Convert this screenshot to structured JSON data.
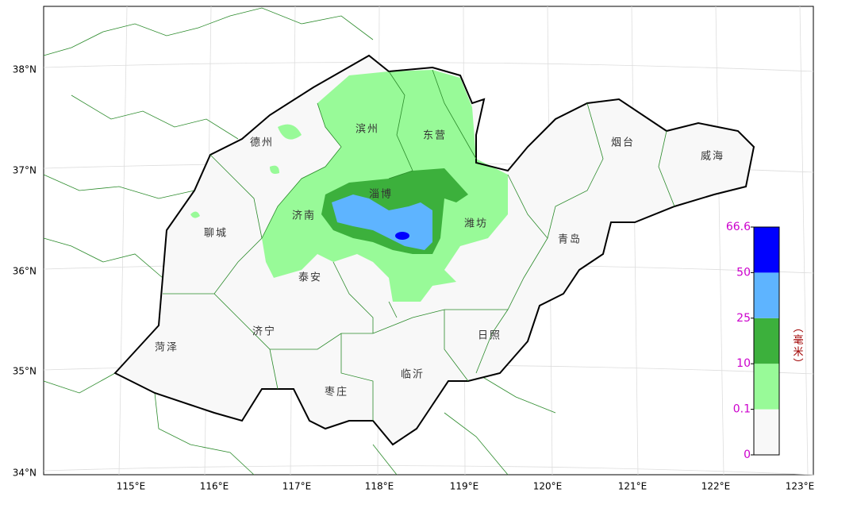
{
  "map": {
    "lat_labels": [
      "38°N",
      "37°N",
      "36°N",
      "35°N",
      "34°N"
    ],
    "lon_labels": [
      "115°E",
      "116°E",
      "117°E",
      "118°E",
      "119°E",
      "120°E",
      "121°E",
      "122°E",
      "123°E"
    ],
    "cities": [
      "德州",
      "滨州",
      "东营",
      "烟台",
      "威海",
      "淄博",
      "济南",
      "潍坊",
      "聊城",
      "青岛",
      "泰安",
      "济宁",
      "日照",
      "菏泽",
      "临沂",
      "枣庄"
    ]
  },
  "legend": {
    "levels": [
      0,
      0.1,
      10,
      25,
      50,
      66.6
    ],
    "colors": [
      "#f8f8f8",
      "#98fa98",
      "#3cb03c",
      "#5eb4ff",
      "#0000ff"
    ],
    "unit": "（毫米）"
  }
}
